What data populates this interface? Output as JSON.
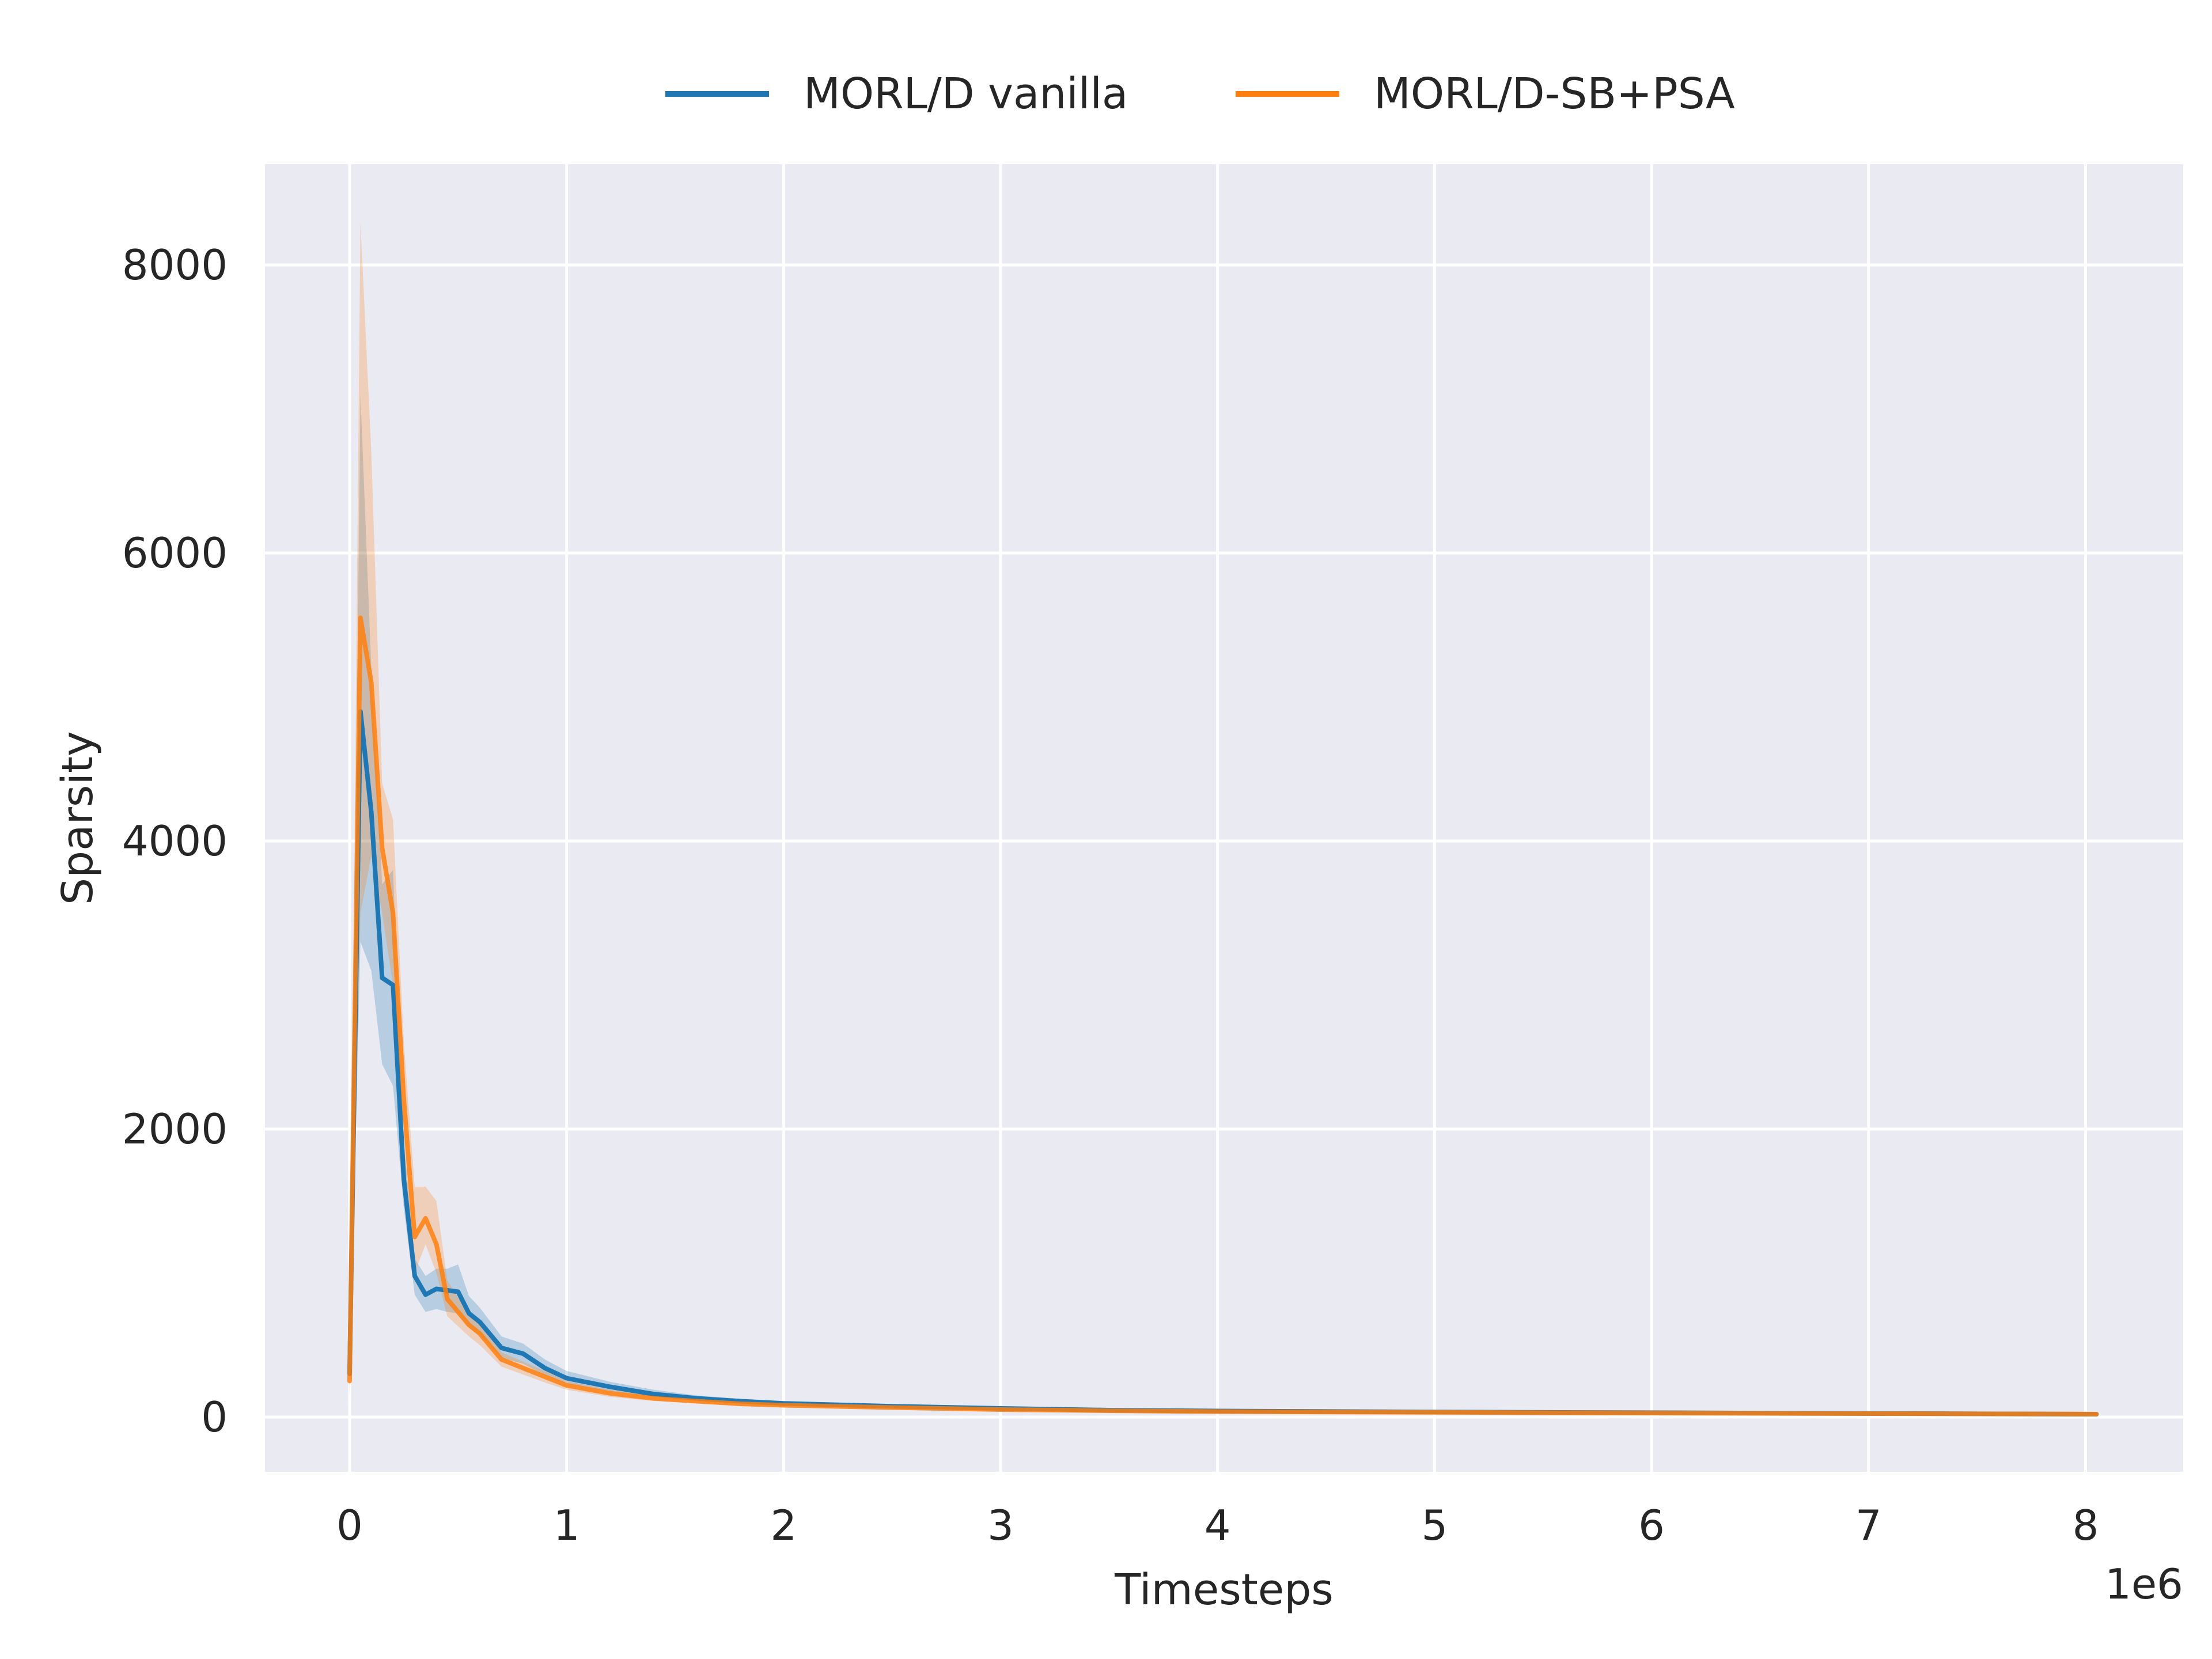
{
  "chart_data": {
    "type": "line",
    "xlabel": "Timesteps",
    "ylabel": "Sparsity",
    "x_offset_label": "1e6",
    "xlim": [
      -0.39,
      8.45
    ],
    "ylim": [
      -380,
      8700
    ],
    "x_ticks": [
      0,
      1,
      2,
      3,
      4,
      5,
      6,
      7,
      8
    ],
    "x_tick_labels": [
      "0",
      "1",
      "2",
      "3",
      "4",
      "5",
      "6",
      "7",
      "8"
    ],
    "y_ticks": [
      0,
      2000,
      4000,
      6000,
      8000
    ],
    "y_tick_labels": [
      "0",
      "2000",
      "4000",
      "6000",
      "8000"
    ],
    "grid": true,
    "legend_position": "top-center",
    "x": [
      0,
      0.05,
      0.1,
      0.15,
      0.2,
      0.25,
      0.3,
      0.35,
      0.4,
      0.45,
      0.5,
      0.55,
      0.6,
      0.7,
      0.8,
      0.9,
      1.0,
      1.2,
      1.4,
      1.6,
      1.8,
      2.0,
      2.5,
      3.0,
      3.5,
      4.0,
      5.0,
      6.0,
      7.0,
      8.05
    ],
    "series": [
      {
        "name": "MORL/D vanilla",
        "color": "#1f77b4",
        "values": [
          300,
          4900,
          4200,
          3050,
          3000,
          1650,
          980,
          850,
          890,
          880,
          870,
          720,
          660,
          480,
          440,
          340,
          270,
          210,
          160,
          130,
          110,
          95,
          75,
          60,
          48,
          42,
          35,
          30,
          25,
          20
        ],
        "lower": [
          150,
          3300,
          3100,
          2450,
          2300,
          1450,
          850,
          730,
          750,
          730,
          720,
          620,
          570,
          410,
          370,
          290,
          230,
          180,
          140,
          110,
          95,
          82,
          64,
          51,
          41,
          36,
          30,
          26,
          22,
          18
        ],
        "upper": [
          450,
          7100,
          5200,
          3700,
          3800,
          1900,
          1100,
          980,
          1030,
          1030,
          1060,
          840,
          760,
          560,
          510,
          400,
          320,
          245,
          190,
          150,
          128,
          110,
          86,
          70,
          56,
          49,
          41,
          35,
          29,
          23
        ]
      },
      {
        "name": "MORL/D-SB+PSA",
        "color": "#ff7f0e",
        "values": [
          250,
          5550,
          5100,
          3950,
          3500,
          2200,
          1250,
          1380,
          1200,
          820,
          730,
          640,
          580,
          400,
          340,
          280,
          220,
          165,
          130,
          110,
          92,
          82,
          66,
          52,
          44,
          38,
          33,
          28,
          24,
          20
        ],
        "lower": [
          100,
          3500,
          3900,
          3500,
          3000,
          1800,
          1000,
          1200,
          1000,
          700,
          630,
          560,
          500,
          350,
          295,
          240,
          190,
          140,
          112,
          95,
          80,
          71,
          57,
          45,
          38,
          33,
          28,
          24,
          21,
          17
        ],
        "upper": [
          400,
          8300,
          6700,
          4400,
          4150,
          2600,
          1600,
          1600,
          1500,
          950,
          830,
          720,
          660,
          450,
          385,
          320,
          250,
          190,
          150,
          125,
          105,
          94,
          76,
          60,
          50,
          44,
          38,
          32,
          28,
          23
        ]
      }
    ]
  }
}
